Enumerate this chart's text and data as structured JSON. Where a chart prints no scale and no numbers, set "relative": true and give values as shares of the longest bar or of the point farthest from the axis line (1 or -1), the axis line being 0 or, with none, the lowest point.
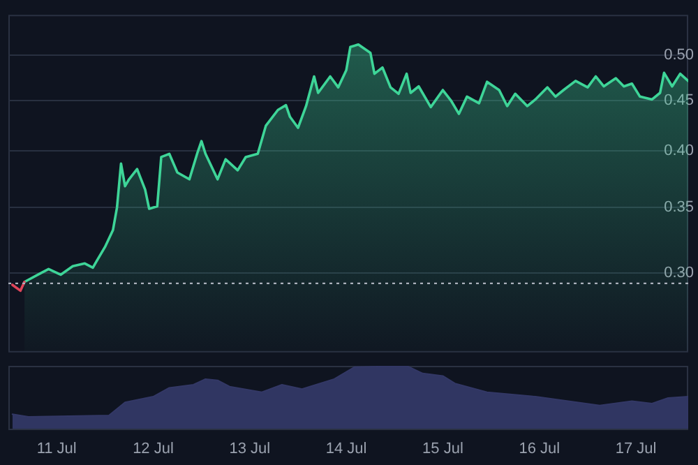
{
  "chart_data": [
    {
      "type": "area",
      "log": "y",
      "grid": "y",
      "tick_labels": "y",
      "marker": "none",
      "legend": false,
      "xlim": [
        "--07-10T12:00",
        "--07-17T13:00"
      ],
      "ylim": [
        0.25,
        0.55
      ],
      "yticks": [
        {
          "value": 0.3,
          "label": "0.30"
        },
        0.35,
        {
          "value": 0.4,
          "label": "0.40"
        },
        0.45,
        {
          "value": 0.5,
          "label": "0.50"
        }
      ],
      "ref_lines": [
        {
          "axis": "y",
          "value": 0.293,
          "color": "#aab0bb",
          "line_style": "dotted"
        }
      ],
      "series": [
        {
          "type": "line",
          "color": "#e0455a",
          "x": [
            "--07-10T13:00",
            "--07-10T15:00",
            "--07-10T16:00"
          ],
          "values": [
            0.292,
            0.288,
            0.294
          ]
        },
        {
          "type": "area",
          "color": "#3ed598",
          "x": [
            "--07-10T16:00",
            "--07-10T20:00",
            "--07-10T22:00",
            "--07-11T01:00",
            "--07-11T04:00",
            "--07-11T07:00",
            "--07-11T09:00",
            "--07-11T10:00",
            "--07-11T12:00",
            "--07-11T14:00",
            "--07-11T15:00",
            "--07-11T16:00",
            "--07-11T17:00",
            "--07-11T18:00",
            "--07-11T20:00",
            "--07-11T22:00",
            "--07-11T23:00",
            "--07-12T01:00",
            "--07-12T02:00",
            "--07-12T04:00",
            "--07-12T06:00",
            "--07-12T09:00",
            "--07-12T11:00",
            "--07-12T12:00",
            "--07-12T13:00",
            "--07-12T16:00",
            "--07-12T18:00",
            "--07-12T21:00",
            "--07-12T23:00",
            "--07-13T02:00",
            "--07-13T04:00",
            "--07-13T07:00",
            "--07-13T09:00",
            "--07-13T10:00",
            "--07-13T12:00",
            "--07-13T14:00",
            "--07-13T16:00",
            "--07-13T17:00",
            "--07-13T20:00",
            "--07-13T22:00",
            "--07-14T00:00",
            "--07-14T01:00",
            "--07-14T03:00",
            "--07-14T06:00",
            "--07-14T07:00",
            "--07-14T09:00",
            "--07-14T11:00",
            "--07-14T13:00",
            "--07-14T15:00",
            "--07-14T16:00",
            "--07-14T18:00",
            "--07-14T21:00",
            "--07-15T00:00",
            "--07-15T02:00",
            "--07-15T04:00",
            "--07-15T06:00",
            "--07-15T09:00",
            "--07-15T11:00",
            "--07-15T14:00",
            "--07-15T16:00",
            "--07-15T18:00",
            "--07-15T21:00",
            "--07-15T23:00",
            "--07-16T02:00",
            "--07-16T04:00",
            "--07-16T06:00",
            "--07-16T09:00",
            "--07-16T12:00",
            "--07-16T14:00",
            "--07-16T16:00",
            "--07-16T19:00",
            "--07-16T21:00",
            "--07-16T23:00",
            "--07-17T01:00",
            "--07-17T04:00",
            "--07-17T06:00",
            "--07-17T07:00",
            "--07-17T09:00",
            "--07-17T11:00",
            "--07-17T13:00"
          ],
          "values": [
            0.294,
            0.3,
            0.303,
            0.299,
            0.305,
            0.307,
            0.304,
            0.309,
            0.319,
            0.332,
            0.35,
            0.388,
            0.368,
            0.374,
            0.383,
            0.365,
            0.349,
            0.351,
            0.394,
            0.397,
            0.38,
            0.374,
            0.398,
            0.409,
            0.397,
            0.374,
            0.392,
            0.382,
            0.394,
            0.397,
            0.424,
            0.44,
            0.445,
            0.433,
            0.422,
            0.444,
            0.476,
            0.458,
            0.476,
            0.464,
            0.483,
            0.51,
            0.513,
            0.503,
            0.479,
            0.486,
            0.464,
            0.457,
            0.479,
            0.458,
            0.465,
            0.443,
            0.461,
            0.45,
            0.436,
            0.454,
            0.447,
            0.47,
            0.461,
            0.444,
            0.457,
            0.444,
            0.451,
            0.464,
            0.454,
            0.461,
            0.471,
            0.464,
            0.476,
            0.465,
            0.474,
            0.465,
            0.468,
            0.454,
            0.451,
            0.458,
            0.48,
            0.465,
            0.479,
            0.471
          ]
        }
      ]
    },
    {
      "type": "area",
      "relative": true,
      "grid": false,
      "tick_labels": "x",
      "marker": "none",
      "legend": false,
      "xlim": [
        "--07-10T12:00",
        "--07-17T13:00"
      ],
      "xticks": [
        {
          "value": "--07-11",
          "label": "11 Jul"
        },
        {
          "value": "--07-12",
          "label": "12 Jul"
        },
        {
          "value": "--07-13",
          "label": "13 Jul"
        },
        {
          "value": "--07-14",
          "label": "14 Jul"
        },
        {
          "value": "--07-15",
          "label": "15 Jul"
        },
        {
          "value": "--07-16",
          "label": "16 Jul"
        },
        {
          "value": "--07-17",
          "label": "17 Jul"
        }
      ],
      "series": [
        {
          "color": "#333866",
          "x": [
            "--07-10T13:00",
            "--07-10T17:00",
            "--07-11T13:00",
            "--07-11T17:00",
            "--07-12T00:00",
            "--07-12T04:00",
            "--07-12T10:00",
            "--07-12T13:00",
            "--07-12T16:00",
            "--07-12T19:00",
            "--07-13T03:00",
            "--07-13T08:00",
            "--07-13T13:00",
            "--07-13T21:00",
            "--07-14T02:00",
            "--07-14T15:00",
            "--07-14T19:00",
            "--07-15T00:00",
            "--07-15T03:00",
            "--07-15T11:00",
            "--07-15T23:00",
            "--07-16T15:00",
            "--07-16T23:00",
            "--07-17T04:00",
            "--07-17T08:00",
            "--07-17T13:00"
          ],
          "values": [
            0.23,
            0.19,
            0.21,
            0.42,
            0.51,
            0.65,
            0.7,
            0.79,
            0.77,
            0.67,
            0.58,
            0.7,
            0.63,
            0.79,
            0.98,
            1,
            0.88,
            0.84,
            0.72,
            0.58,
            0.51,
            0.37,
            0.44,
            0.4,
            0.49,
            0.51
          ]
        }
      ]
    }
  ]
}
